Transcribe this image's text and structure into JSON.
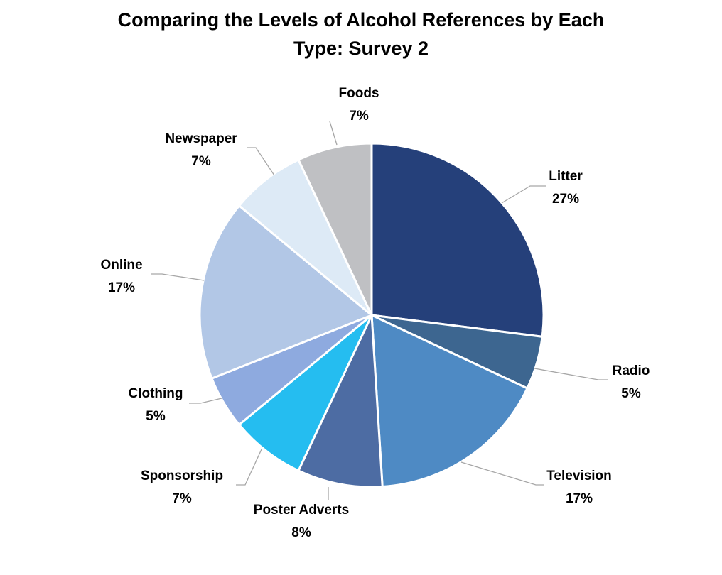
{
  "title_line1": "Comparing the Levels of Alcohol References by Each",
  "title_line2": "Type: Survey 2",
  "chart_data": {
    "type": "pie",
    "title": "Comparing the Levels of Alcohol References by Each Type: Survey 2",
    "categories": [
      "Litter",
      "Radio",
      "Television",
      "Poster Adverts",
      "Sponsorship",
      "Clothing",
      "Online",
      "Newspaper",
      "Foods"
    ],
    "values": [
      27,
      5,
      17,
      8,
      7,
      5,
      17,
      7,
      7
    ],
    "labels": [
      "27%",
      "5%",
      "17%",
      "8%",
      "7%",
      "5%",
      "17%",
      "7%",
      "7%"
    ],
    "colors": [
      "#25407a",
      "#3d6690",
      "#4e8ac4",
      "#4d6ca3",
      "#25bdf0",
      "#8eaadf",
      "#b2c7e6",
      "#ddeaf6",
      "#bfc0c3"
    ],
    "start": "12 o'clock, clockwise",
    "legend": "none"
  }
}
